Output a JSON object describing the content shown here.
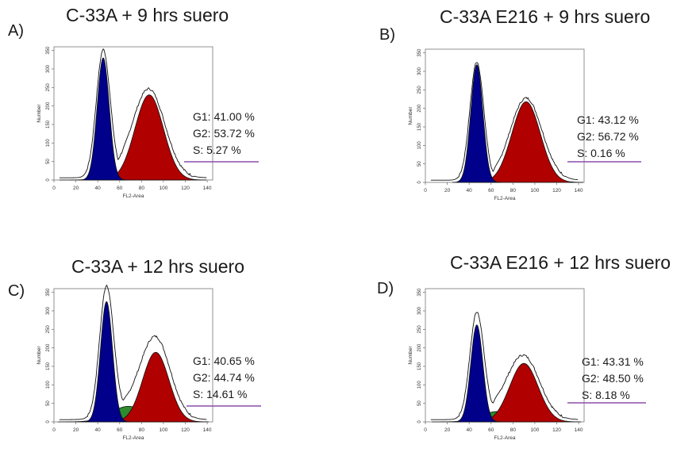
{
  "panels": [
    {
      "letter": "A)",
      "title": "C-33A + 9 hrs suero",
      "g1": "G1: 41.00 %",
      "g2": "G2: 53.72 %",
      "s": "S: 5.27 %"
    },
    {
      "letter": "B)",
      "title": "C-33A E216 + 9 hrs suero",
      "g1": "G1: 43.12 %",
      "g2": "G2: 56.72 %",
      "s": "S: 0.16 %"
    },
    {
      "letter": "C)",
      "title": "C-33A + 12 hrs suero",
      "g1": "G1: 40.65 %",
      "g2": "G2: 44.74 %",
      "s": "S: 14.61 %"
    },
    {
      "letter": "D)",
      "title": "C-33A E216 + 12 hrs suero",
      "g1": "G1: 43.31 %",
      "g2": "G2: 48.50 %",
      "s": "S: 8.18 %"
    }
  ],
  "chart_data": [
    {
      "type": "area",
      "title": "C-33A + 9 hrs suero",
      "xlabel": "FL2-Area",
      "ylabel": "Number",
      "xlim": [
        0,
        145
      ],
      "ylim": [
        0,
        360
      ],
      "x_ticks": [
        0,
        20,
        40,
        60,
        80,
        100,
        120,
        140
      ],
      "y_ticks": [
        0,
        50,
        100,
        150,
        200,
        250,
        300,
        350
      ],
      "legend": [
        "G1: 41.00 %",
        "G2: 53.72 %",
        "S: 5.27 %"
      ],
      "series": [
        {
          "color": "#00008b",
          "peak_x": 45,
          "peak_y": 330,
          "width": 5.5
        },
        {
          "color": "#b00000",
          "peak_x": 87,
          "peak_y": 230,
          "width": 13
        },
        {
          "color": "#2e8b2e",
          "peak_x": 65,
          "peak_y": 20,
          "width": 15
        }
      ],
      "envelope_peaks": [
        340,
        235
      ]
    },
    {
      "type": "area",
      "title": "C-33A E216 + 9 hrs suero",
      "xlabel": "FL2-Area",
      "ylabel": "Number",
      "xlim": [
        0,
        145
      ],
      "ylim": [
        0,
        360
      ],
      "x_ticks": [
        0,
        20,
        40,
        60,
        80,
        100,
        120,
        140
      ],
      "y_ticks": [
        0,
        50,
        100,
        150,
        200,
        250,
        300,
        350
      ],
      "legend": [
        "G1: 43.12 %",
        "G2: 56.72 %",
        "S: 0.16 %"
      ],
      "series": [
        {
          "color": "#00008b",
          "peak_x": 47,
          "peak_y": 318,
          "width": 5.5
        },
        {
          "color": "#b00000",
          "peak_x": 92,
          "peak_y": 218,
          "width": 13
        },
        {
          "color": "#2e8b2e",
          "peak_x": 70,
          "peak_y": 0,
          "width": 15
        }
      ],
      "envelope_peaks": [
        320,
        222
      ]
    },
    {
      "type": "area",
      "title": "C-33A + 12 hrs suero",
      "xlabel": "FL2-Area",
      "ylabel": "Number",
      "xlim": [
        0,
        145
      ],
      "ylim": [
        0,
        360
      ],
      "x_ticks": [
        0,
        20,
        40,
        60,
        80,
        100,
        120,
        140
      ],
      "y_ticks": [
        0,
        50,
        100,
        150,
        200,
        250,
        300,
        350
      ],
      "legend": [
        "G1: 40.65 %",
        "G2: 44.74 %",
        "S: 14.61 %"
      ],
      "series": [
        {
          "color": "#00008b",
          "peak_x": 48,
          "peak_y": 325,
          "width": 5.5
        },
        {
          "color": "#b00000",
          "peak_x": 93,
          "peak_y": 188,
          "width": 12
        },
        {
          "color": "#2e8b2e",
          "peak_x": 68,
          "peak_y": 42,
          "width": 16
        }
      ],
      "envelope_peaks": [
        348,
        215
      ]
    },
    {
      "type": "area",
      "title": "C-33A E216 + 12 hrs suero",
      "xlabel": "FL2-Area",
      "ylabel": "Number",
      "xlim": [
        0,
        145
      ],
      "ylim": [
        0,
        360
      ],
      "x_ticks": [
        0,
        20,
        40,
        60,
        80,
        100,
        120,
        140
      ],
      "y_ticks": [
        0,
        50,
        100,
        150,
        200,
        250,
        300,
        350
      ],
      "legend": [
        "G1: 43.31 %",
        "G2: 48.50 %",
        "S: 8.18 %"
      ],
      "series": [
        {
          "color": "#00008b",
          "peak_x": 47,
          "peak_y": 262,
          "width": 5.5
        },
        {
          "color": "#b00000",
          "peak_x": 90,
          "peak_y": 158,
          "width": 13
        },
        {
          "color": "#2e8b2e",
          "peak_x": 66,
          "peak_y": 28,
          "width": 15
        }
      ],
      "envelope_peaks": [
        282,
        168
      ]
    }
  ]
}
